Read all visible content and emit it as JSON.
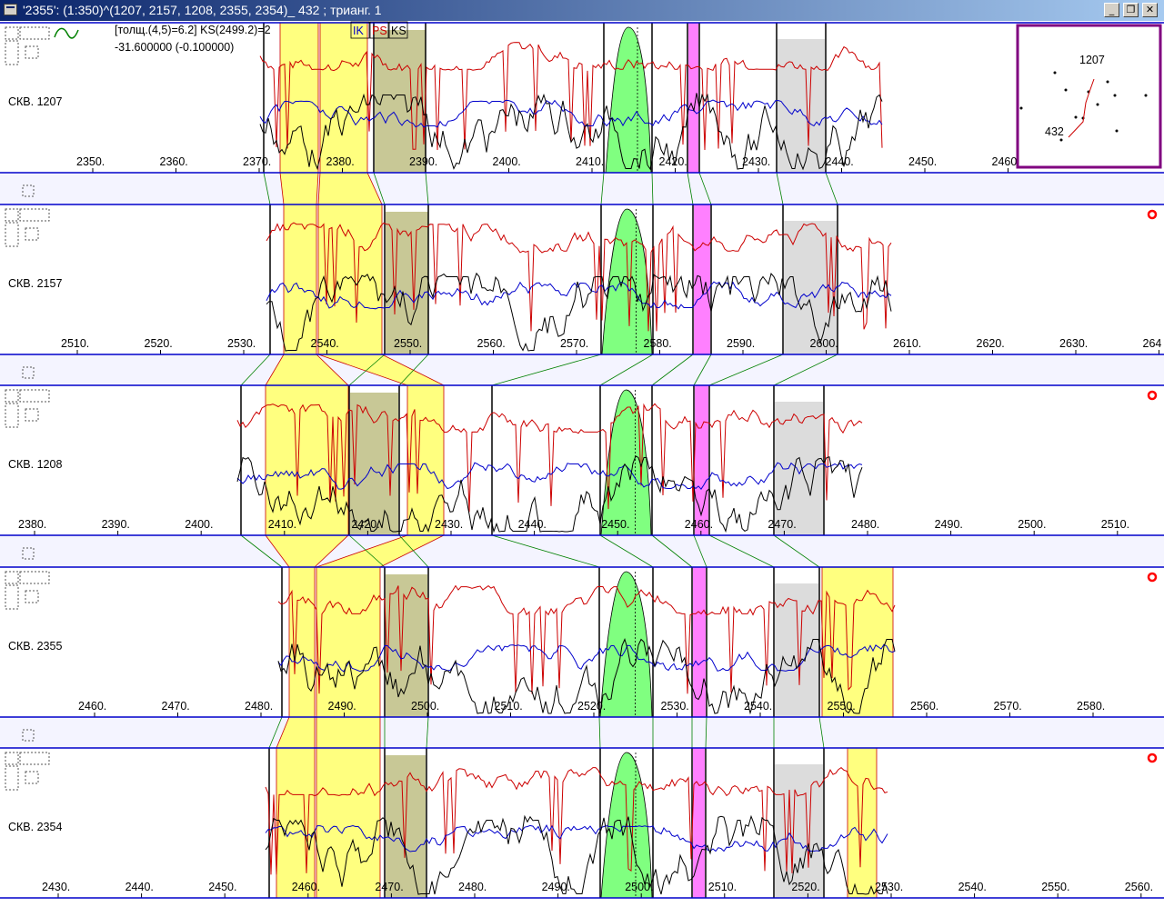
{
  "window": {
    "title": "'2355': (1:350)^(1207, 2157, 1208, 2355, 2354)_ 432 ; трианг. 1",
    "buttons": {
      "minimize": "_",
      "restore": "❐",
      "close": "✕"
    }
  },
  "info": {
    "line1": "[толщ.(4,5)=6.2] KS(2499.2)=2",
    "line2": "-31.600000 (-0.100000)",
    "legend": [
      {
        "label": "IK",
        "color": "#0000cc"
      },
      {
        "label": "PS",
        "color": "#cc0000"
      },
      {
        "label": "KS",
        "color": "#000000"
      }
    ]
  },
  "colors": {
    "yellow": "#ffff7f",
    "olive": "#c8c896",
    "green": "#80ff80",
    "magenta": "#ff80ff",
    "gray": "#dcdcdc",
    "separator": "#f4f4ff",
    "blue_line": "#0000cc",
    "red_line": "#cc0000",
    "frame": "#800080"
  },
  "wells": [
    {
      "name": "СКВ. 1207",
      "ticks": [
        "2350.",
        "2360.",
        "2370.",
        "2380.",
        "2390.",
        "2400.",
        "2410.",
        "2420.",
        "2430.",
        "2440.",
        "2450.",
        "2460."
      ]
    },
    {
      "name": "СКВ. 2157",
      "ticks": [
        "2510.",
        "2520.",
        "2530.",
        "2540.",
        "2550.",
        "2560.",
        "2570.",
        "2580.",
        "2590.",
        "2600.",
        "2610.",
        "2620.",
        "2630.",
        "264"
      ]
    },
    {
      "name": "СКВ. 1208",
      "ticks": [
        "2380.",
        "2390.",
        "2400.",
        "2410.",
        "2420.",
        "2430.",
        "2440.",
        "2450.",
        "2460.",
        "2470.",
        "2480.",
        "2490.",
        "2500.",
        "2510."
      ]
    },
    {
      "name": "СКВ. 2355",
      "ticks": [
        "2460.",
        "2470.",
        "2480.",
        "2490.",
        "2500.",
        "2510.",
        "2520.",
        "2530.",
        "2540.",
        "2550.",
        "2560.",
        "2570.",
        "2580."
      ]
    },
    {
      "name": "СКВ. 2354",
      "ticks": [
        "2430.",
        "2440.",
        "2450.",
        "2460.",
        "2470.",
        "2480.",
        "2490.",
        "2500.",
        "2510.",
        "2520.",
        "2530.",
        "2540.",
        "2550.",
        "2560."
      ]
    }
  ],
  "minimap": {
    "labels": [
      "1207",
      "432"
    ]
  }
}
